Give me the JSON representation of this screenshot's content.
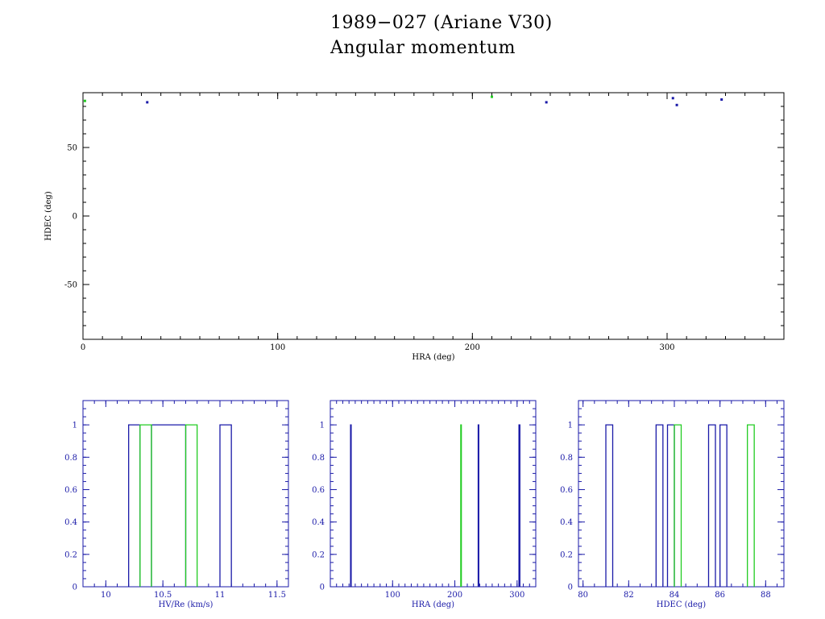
{
  "header": {
    "title": "1989−027 (Ariane V30)",
    "subtitle": "Angular momentum"
  },
  "colors": {
    "blue": "#1a1aa8",
    "green": "#22cc22",
    "axis_main": "#000000",
    "axis_hist": "#1a1aa8"
  },
  "chart_data": [
    {
      "type": "scatter",
      "xlabel": "HRA (deg)",
      "ylabel": "HDEC (deg)",
      "xlim": [
        0,
        360
      ],
      "ylim": [
        -90,
        90
      ],
      "xticks": [
        0,
        100,
        200,
        300
      ],
      "yticks": [
        -50,
        0,
        50
      ],
      "series": [
        {
          "color": "green",
          "points": [
            [
              1,
              84
            ],
            [
              210,
              87
            ]
          ]
        },
        {
          "color": "blue",
          "points": [
            [
              33,
              83
            ],
            [
              238,
              83
            ],
            [
              303,
              86
            ],
            [
              305,
              81
            ],
            [
              328,
              85
            ]
          ]
        }
      ]
    },
    {
      "type": "bar",
      "subtype": "histogram",
      "xlabel": "HV/Re (km/s)",
      "xlim": [
        9.8,
        11.6
      ],
      "ylim": [
        0,
        1.15
      ],
      "xticks": [
        10,
        10.5,
        11,
        11.5
      ],
      "xtick_labels": [
        "10",
        "10.5",
        "11",
        "11.5"
      ],
      "yticks": [
        0,
        0.2,
        0.4,
        0.6,
        0.8,
        1
      ],
      "ytick_labels": [
        "0",
        "0.2",
        "0.4",
        "0.6",
        "0.8",
        "1"
      ],
      "series": [
        {
          "color": "blue",
          "bins": [
            [
              10.2,
              10.3,
              1
            ],
            [
              10.4,
              10.7,
              1
            ],
            [
              11.0,
              11.1,
              1
            ]
          ]
        },
        {
          "color": "green",
          "bins": [
            [
              10.3,
              10.4,
              1
            ],
            [
              10.7,
              10.8,
              1
            ]
          ]
        }
      ]
    },
    {
      "type": "bar",
      "subtype": "histogram",
      "xlabel": "HRA (deg)",
      "xlim": [
        0,
        330
      ],
      "ylim": [
        0,
        1.15
      ],
      "xticks": [
        100,
        200,
        300
      ],
      "xtick_labels": [
        "100",
        "200",
        "300"
      ],
      "yticks": [
        0,
        0.2,
        0.4,
        0.6,
        0.8,
        1
      ],
      "ytick_labels": [
        "0",
        "0.2",
        "0.4",
        "0.6",
        "0.8",
        "1"
      ],
      "series": [
        {
          "color": "blue",
          "bins": [
            [
              32.5,
              33.5,
              1
            ],
            [
              237.5,
              238.5,
              1
            ],
            [
              303,
              304.5,
              1
            ]
          ]
        },
        {
          "color": "green",
          "bins": [
            [
              209.5,
              210.5,
              1
            ]
          ]
        }
      ]
    },
    {
      "type": "bar",
      "subtype": "histogram",
      "xlabel": "HDEC (deg)",
      "xlim": [
        79.8,
        88.8
      ],
      "ylim": [
        0,
        1.15
      ],
      "xticks": [
        80,
        82,
        84,
        86,
        88
      ],
      "xtick_labels": [
        "80",
        "82",
        "84",
        "86",
        "88"
      ],
      "yticks": [
        0,
        0.2,
        0.4,
        0.6,
        0.8,
        1
      ],
      "ytick_labels": [
        "0",
        "0.2",
        "0.4",
        "0.6",
        "0.8",
        "1"
      ],
      "series": [
        {
          "color": "blue",
          "bins": [
            [
              81.0,
              81.3,
              1
            ],
            [
              83.2,
              83.5,
              1
            ],
            [
              83.7,
              84.0,
              1
            ],
            [
              85.5,
              85.8,
              1
            ],
            [
              86.0,
              86.3,
              1
            ]
          ]
        },
        {
          "color": "green",
          "bins": [
            [
              84.0,
              84.3,
              1
            ],
            [
              87.2,
              87.5,
              1
            ]
          ]
        }
      ]
    }
  ]
}
